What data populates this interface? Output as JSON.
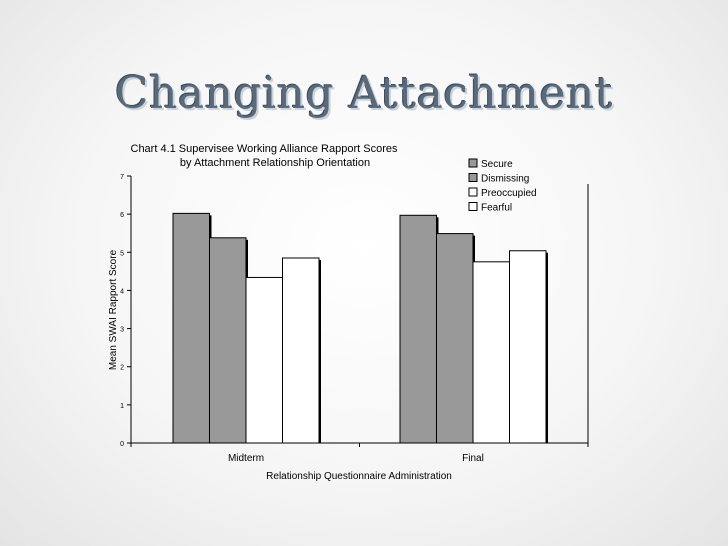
{
  "slide": {
    "title": "Changing Attachment"
  },
  "chart_data": {
    "type": "bar",
    "title": "Chart 4.1 Supervisee Working Alliance Rapport Scores",
    "subtitle": "by Attachment Relationship Orientation",
    "xlabel": "Relationship Questionnaire Administration",
    "ylabel": "Mean SWAI Rapport Score",
    "categories": [
      "Midterm",
      "Final"
    ],
    "ylim": [
      0,
      7
    ],
    "yticks": [
      0,
      1,
      2,
      3,
      4,
      5,
      6,
      7
    ],
    "grid": false,
    "legend_position": "top-right",
    "series": [
      {
        "name": "Secure",
        "values": [
          6.02,
          5.97
        ],
        "color": "#999999"
      },
      {
        "name": "Dismissing",
        "values": [
          5.38,
          5.49
        ],
        "color": "#999999"
      },
      {
        "name": "Preoccupied",
        "values": [
          4.34,
          4.75
        ],
        "color": "#ffffff"
      },
      {
        "name": "Fearful",
        "values": [
          4.85,
          5.04
        ],
        "color": "#ffffff"
      }
    ]
  }
}
